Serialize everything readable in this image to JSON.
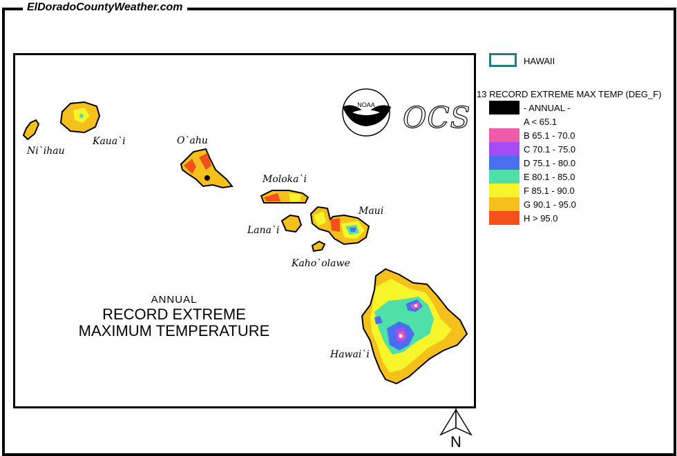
{
  "site": {
    "title": "ElDoradoCountyWeather.com"
  },
  "map": {
    "title_line1": "ANNUAL",
    "title_line2": "RECORD EXTREME",
    "title_line3": "MAXIMUM TEMPERATURE",
    "logo_text": "NOAA",
    "ocs_text": "OCS",
    "islands": [
      {
        "name": "Ni`ihau"
      },
      {
        "name": "Kaua`i"
      },
      {
        "name": "O`ahu"
      },
      {
        "name": "Moloka`i"
      },
      {
        "name": "Lana`i"
      },
      {
        "name": "Maui"
      },
      {
        "name": "Kaho`olawe"
      },
      {
        "name": "Hawai`i"
      }
    ],
    "north_label": "N"
  },
  "legend": {
    "region_label": "HAWAII",
    "region_color": "#1f7f7f",
    "title": "13 RECORD EXTREME MAX TEMP (DEG_F)",
    "items": [
      {
        "label": "- ANNUAL -",
        "color": "#000000"
      },
      {
        "label": "A < 65.1",
        "color": "#ffffff"
      },
      {
        "label": "B 65.1 - 70.0",
        "color": "#ec5ca8"
      },
      {
        "label": "C 70.1 - 75.0",
        "color": "#a64cf4"
      },
      {
        "label": "D 75.1 - 80.0",
        "color": "#4a6ef0"
      },
      {
        "label": "E 80.1 - 85.0",
        "color": "#4fe0a8"
      },
      {
        "label": "F 85.1 - 90.0",
        "color": "#f6f52a"
      },
      {
        "label": "G 90.1 - 95.0",
        "color": "#f6c01c"
      },
      {
        "label": "H > 95.0",
        "color": "#f4501c"
      }
    ]
  }
}
